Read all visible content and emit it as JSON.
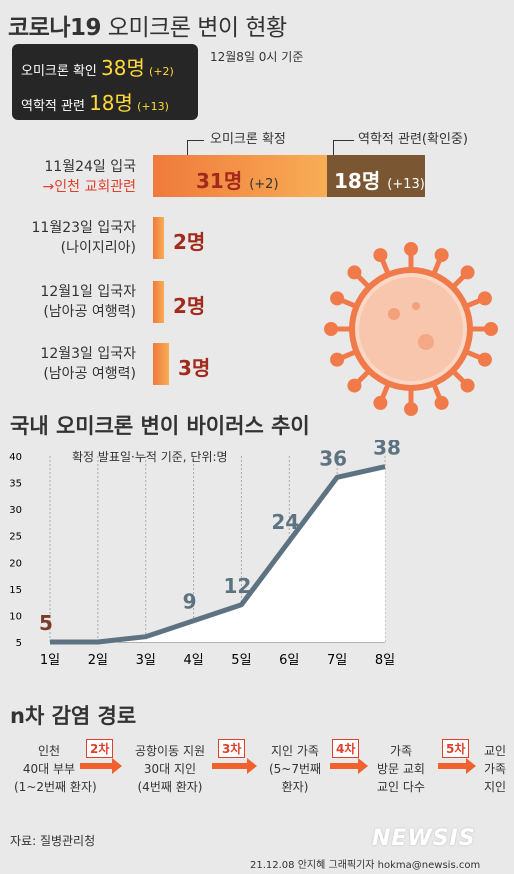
{
  "title_bold": "코로나19",
  "title_rest": " 오미크론 변이 현황",
  "summary": {
    "confirmed_label": "오미크론 확인",
    "confirmed_value": "38명",
    "confirmed_delta": "(+2)",
    "related_label": "역학적 관련",
    "related_value": "18명",
    "related_delta": "(+13)"
  },
  "basis": "12월8일 0시 기준",
  "bar_legend": {
    "confirmed": "오미크론 확정",
    "related": "역학적 관련(확인중)"
  },
  "groups": [
    {
      "line1": "11월24일 입국",
      "line2": "→인천 교회관련",
      "count": "31명",
      "delta": "(+2)",
      "related_count": "18명",
      "related_delta": "(+13)"
    },
    {
      "line1": "11월23일 입국자",
      "line2": "(나이지리아)",
      "count": "2명"
    },
    {
      "line1": "12월1일 입국자",
      "line2": "(남아공 여행력)",
      "count": "2명"
    },
    {
      "line1": "12월3일 입국자",
      "line2": "(남아공 여행력)",
      "count": "3명"
    }
  ],
  "chart_title": "국내 오미크론 변이 바이러스 추이",
  "chart_data": {
    "type": "line",
    "subtitle": "확정 발표일·누적 기준, 단위:명",
    "categories": [
      "1일",
      "2일",
      "3일",
      "4일",
      "5일",
      "6일",
      "7일",
      "8일"
    ],
    "values": [
      5,
      5,
      6,
      9,
      12,
      24,
      36,
      38
    ],
    "data_labels": [
      "5",
      "",
      "",
      "9",
      "12",
      "24",
      "36",
      "38"
    ],
    "y_ticks": [
      "5",
      "10",
      "15",
      "20",
      "25",
      "30",
      "35",
      "40"
    ],
    "ylim": [
      5,
      40
    ],
    "line_color": "#5e7381",
    "fill_color": "#ffffff"
  },
  "route_title": "n차 감염 경로",
  "route": {
    "steps": [
      [
        "인천",
        "40대 부부",
        "(1~2번째 환자)"
      ],
      [
        "공항이동 지원",
        "30대 지인",
        "(4번째 환자)"
      ],
      [
        "지인 가족",
        "(5~7번째",
        "환자)"
      ],
      [
        "가족",
        "방문 교회",
        "교인 다수"
      ],
      [
        "교인",
        "가족",
        "지인"
      ]
    ],
    "badges": [
      "2차",
      "3차",
      "4차",
      "5차"
    ]
  },
  "source": "자료: 질병관리청",
  "logo": "NEWSIS",
  "credit": "21.12.08 안지혜 그래픽기자 hokma@newsis.com",
  "colors": {
    "accent": "#e0402a",
    "orange": "#f7a04a",
    "brown": "#7a5633",
    "dark": "#262626"
  }
}
